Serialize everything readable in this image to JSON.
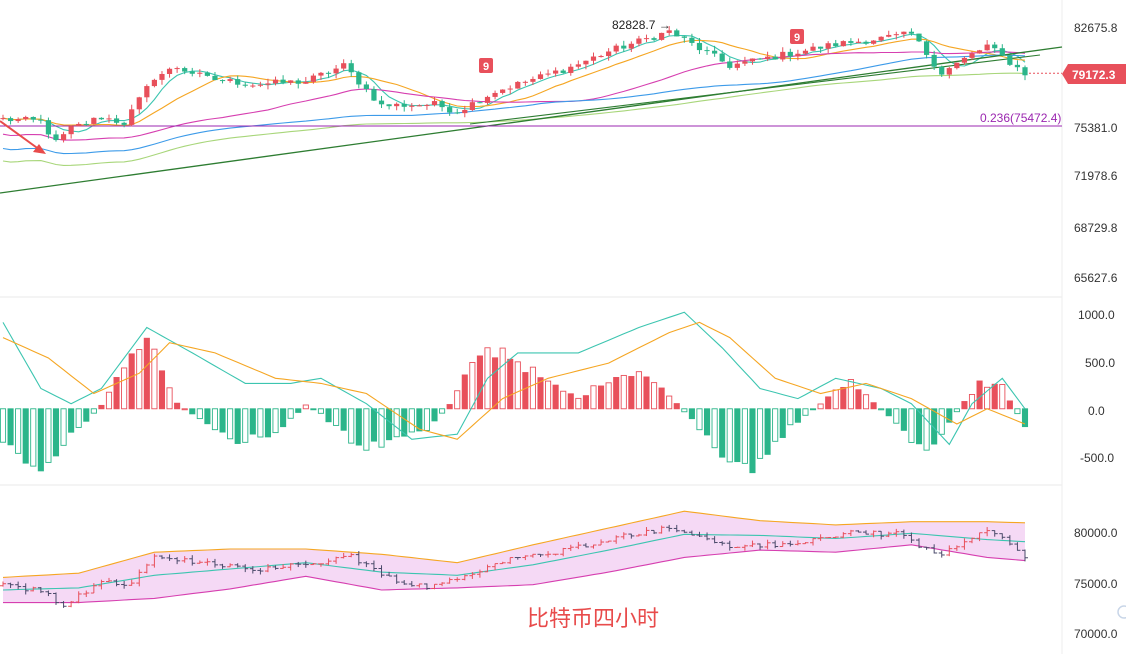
{
  "caption": "比特币四小时",
  "colors": {
    "up": "#e8505b",
    "down": "#2bb58a",
    "ma_teal": "#3cc5b0",
    "ma_orange": "#f5a623",
    "ma_magenta": "#d63fb0",
    "ma_blue": "#3d9be9",
    "ma_lightgreen": "#a8d67a",
    "trendline": "#2e7d32",
    "fib": "#9b27b0",
    "boll_fill": "#f5d9f5",
    "boll_upper": "#f5a623",
    "boll_lower": "#d63fb0"
  },
  "chart_data": [
    {
      "type": "candlestick",
      "panel": "price",
      "yaxis_ticks": [
        "82675.8",
        "75381.0",
        "71978.6",
        "68729.8",
        "65627.6"
      ],
      "ylim": [
        63500,
        84300
      ],
      "current_price_label": "79172.3",
      "current_price": 79172.3,
      "high_annotation": "82828.7 →",
      "high_value": 82828.7,
      "fib_label": "0.236(75472.4)",
      "fib_value": 75472.4,
      "td_marker_label": "9",
      "td_markers_at_candle": [
        62,
        106
      ],
      "overlays": [
        "MA (teal)",
        "MA (orange)",
        "MA (magenta)",
        "MA (blue)",
        "MA (light green)",
        "trend line",
        "Fibonacci level"
      ],
      "candle_count": 136,
      "close_path_points": [
        [
          0,
          75950
        ],
        [
          5,
          75800
        ],
        [
          7,
          74300
        ],
        [
          9,
          75300
        ],
        [
          13,
          76100
        ],
        [
          16,
          75700
        ],
        [
          20,
          78900
        ],
        [
          23,
          79600
        ],
        [
          27,
          78800
        ],
        [
          33,
          78400
        ],
        [
          40,
          78600
        ],
        [
          45,
          79700
        ],
        [
          50,
          76900
        ],
        [
          57,
          77000
        ],
        [
          60,
          76500
        ],
        [
          65,
          77900
        ],
        [
          75,
          79600
        ],
        [
          80,
          80700
        ],
        [
          88,
          82100
        ],
        [
          96,
          79700
        ],
        [
          110,
          81200
        ],
        [
          120,
          81900
        ],
        [
          124,
          79200
        ],
        [
          130,
          81100
        ],
        [
          135,
          79172
        ]
      ]
    },
    {
      "type": "macd",
      "panel": "macd",
      "yaxis_ticks": [
        "1000.0",
        "500.0",
        "0.0",
        "-500.0"
      ],
      "ylim": [
        -750,
        1100
      ],
      "bars_count": 136,
      "hist_path_points": [
        [
          0,
          -350
        ],
        [
          5,
          -620
        ],
        [
          10,
          -180
        ],
        [
          13,
          30
        ],
        [
          16,
          450
        ],
        [
          19,
          700
        ],
        [
          23,
          50
        ],
        [
          27,
          -150
        ],
        [
          31,
          -300
        ],
        [
          36,
          -250
        ],
        [
          40,
          40
        ],
        [
          42,
          -50
        ],
        [
          47,
          -380
        ],
        [
          52,
          -300
        ],
        [
          56,
          -200
        ],
        [
          59,
          40
        ],
        [
          63,
          550
        ],
        [
          66,
          580
        ],
        [
          72,
          250
        ],
        [
          76,
          100
        ],
        [
          80,
          300
        ],
        [
          84,
          380
        ],
        [
          89,
          60
        ],
        [
          92,
          -200
        ],
        [
          96,
          -600
        ],
        [
          99,
          -550
        ],
        [
          104,
          -180
        ],
        [
          108,
          50
        ],
        [
          112,
          280
        ],
        [
          115,
          60
        ],
        [
          118,
          -150
        ],
        [
          122,
          -450
        ],
        [
          125,
          -120
        ],
        [
          129,
          250
        ],
        [
          132,
          220
        ],
        [
          135,
          -180
        ]
      ],
      "dif_path_points": [
        [
          0,
          850
        ],
        [
          5,
          200
        ],
        [
          9,
          50
        ],
        [
          13,
          200
        ],
        [
          19,
          800
        ],
        [
          25,
          550
        ],
        [
          32,
          250
        ],
        [
          38,
          250
        ],
        [
          42,
          300
        ],
        [
          48,
          50
        ],
        [
          54,
          -300
        ],
        [
          60,
          -250
        ],
        [
          64,
          300
        ],
        [
          68,
          550
        ],
        [
          76,
          550
        ],
        [
          84,
          800
        ],
        [
          90,
          950
        ],
        [
          95,
          600
        ],
        [
          100,
          200
        ],
        [
          105,
          100
        ],
        [
          110,
          300
        ],
        [
          116,
          200
        ],
        [
          120,
          50
        ],
        [
          125,
          -350
        ],
        [
          128,
          50
        ],
        [
          132,
          300
        ],
        [
          135,
          0
        ]
      ],
      "dea_path_points": [
        [
          0,
          700
        ],
        [
          6,
          500
        ],
        [
          12,
          150
        ],
        [
          18,
          350
        ],
        [
          22,
          650
        ],
        [
          28,
          550
        ],
        [
          36,
          300
        ],
        [
          42,
          250
        ],
        [
          48,
          150
        ],
        [
          55,
          -200
        ],
        [
          60,
          -300
        ],
        [
          66,
          100
        ],
        [
          72,
          300
        ],
        [
          80,
          450
        ],
        [
          88,
          750
        ],
        [
          92,
          850
        ],
        [
          96,
          700
        ],
        [
          102,
          300
        ],
        [
          108,
          150
        ],
        [
          114,
          250
        ],
        [
          120,
          100
        ],
        [
          126,
          -150
        ],
        [
          130,
          0
        ],
        [
          135,
          -150
        ]
      ]
    },
    {
      "type": "bollinger_ohlc",
      "panel": "boll",
      "yaxis_ticks": [
        "80000.0",
        "75000.0",
        "70000.0"
      ],
      "ylim": [
        69700,
        85800
      ],
      "close_path_points": [
        [
          0,
          76200
        ],
        [
          5,
          75800
        ],
        [
          8,
          74200
        ],
        [
          13,
          76700
        ],
        [
          16,
          76000
        ],
        [
          20,
          78800
        ],
        [
          27,
          78400
        ],
        [
          34,
          77800
        ],
        [
          40,
          78200
        ],
        [
          46,
          79100
        ],
        [
          50,
          77200
        ],
        [
          56,
          76000
        ],
        [
          62,
          77400
        ],
        [
          66,
          78600
        ],
        [
          72,
          79200
        ],
        [
          80,
          80700
        ],
        [
          88,
          81700
        ],
        [
          96,
          80000
        ],
        [
          104,
          80100
        ],
        [
          112,
          81300
        ],
        [
          118,
          81100
        ],
        [
          124,
          79100
        ],
        [
          130,
          81600
        ],
        [
          135,
          79100
        ]
      ],
      "mid_path_points": [
        [
          0,
          75800
        ],
        [
          10,
          76000
        ],
        [
          20,
          77200
        ],
        [
          30,
          77800
        ],
        [
          40,
          78400
        ],
        [
          50,
          77500
        ],
        [
          60,
          77200
        ],
        [
          70,
          78200
        ],
        [
          80,
          79600
        ],
        [
          90,
          81100
        ],
        [
          100,
          81000
        ],
        [
          110,
          80700
        ],
        [
          120,
          81200
        ],
        [
          130,
          80600
        ],
        [
          135,
          80400
        ]
      ],
      "width_path_points": [
        [
          0,
          1200
        ],
        [
          10,
          1400
        ],
        [
          20,
          2200
        ],
        [
          30,
          1900
        ],
        [
          40,
          1300
        ],
        [
          50,
          1700
        ],
        [
          60,
          1200
        ],
        [
          70,
          1900
        ],
        [
          80,
          2100
        ],
        [
          90,
          2200
        ],
        [
          100,
          1400
        ],
        [
          110,
          1300
        ],
        [
          120,
          1100
        ],
        [
          130,
          1700
        ],
        [
          135,
          1800
        ]
      ]
    }
  ]
}
